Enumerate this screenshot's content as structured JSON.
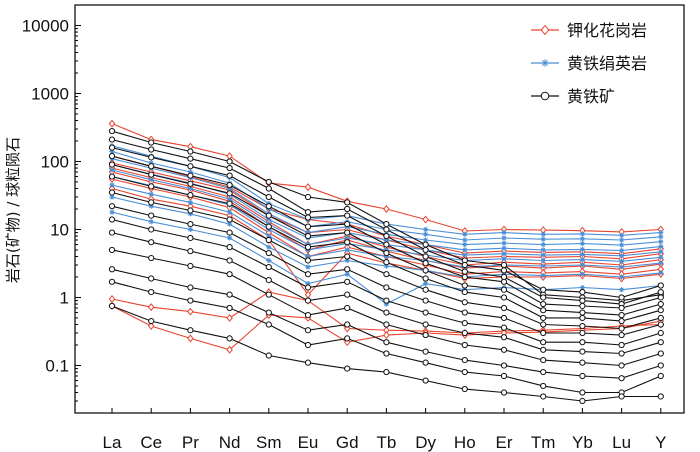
{
  "chart_data": {
    "type": "line",
    "yscale": "log",
    "title": "",
    "xlabel": "",
    "ylabel": "岩石(矿物) / 球粒陨石",
    "ylim": [
      0.02,
      20000
    ],
    "categories": [
      "La",
      "Ce",
      "Pr",
      "Nd",
      "Sm",
      "Eu",
      "Gd",
      "Tb",
      "Dy",
      "Ho",
      "Er",
      "Tm",
      "Yb",
      "Lu",
      "Y"
    ],
    "yticks": [
      {
        "value": 0.1,
        "label": "0.1"
      },
      {
        "value": 1,
        "label": "1"
      },
      {
        "value": 10,
        "label": "10"
      },
      {
        "value": 100,
        "label": "100"
      },
      {
        "value": 1000,
        "label": "1000"
      },
      {
        "value": 10000,
        "label": "10000"
      }
    ],
    "legend_position": "top-right",
    "colors": {
      "red": "#e8442e",
      "blue": "#4a8fd6",
      "black": "#111111"
    },
    "series": [
      {
        "name": "钾化花岗岩",
        "color": "#e8442e",
        "marker": "diamond",
        "values": [
          [
            360,
            210,
            165,
            120,
            48,
            42,
            26,
            20,
            14,
            9.5,
            10,
            9.8,
            9.6,
            9.2,
            10
          ],
          [
            120,
            85,
            60,
            42,
            20,
            14,
            12,
            8,
            6,
            4.5,
            4.8,
            4.6,
            4.7,
            4.4,
            5.2
          ],
          [
            95,
            70,
            52,
            38,
            16,
            9,
            10,
            7,
            5,
            3.8,
            4,
            3.9,
            4,
            3.7,
            4.4
          ],
          [
            80,
            58,
            43,
            30,
            13,
            6,
            8,
            5.5,
            4,
            3,
            3.3,
            3.1,
            3.3,
            3,
            3.6
          ],
          [
            70,
            50,
            38,
            26,
            11,
            5,
            7,
            4.8,
            3.5,
            2.7,
            2.9,
            2.7,
            2.9,
            2.6,
            3.1
          ],
          [
            55,
            40,
            30,
            21,
            9,
            4,
            5.5,
            4,
            3,
            2.2,
            2.4,
            2.3,
            2.4,
            2.2,
            2.6
          ],
          [
            40,
            28,
            22,
            16,
            7,
            1.1,
            4.5,
            3.2,
            2.5,
            1.9,
            2,
            2,
            2.1,
            1.9,
            2.2
          ],
          [
            0.95,
            0.72,
            0.62,
            0.5,
            1.2,
            0.9,
            0.35,
            0.33,
            0.32,
            0.3,
            0.32,
            0.33,
            0.35,
            0.38,
            0.4
          ],
          [
            0.75,
            0.38,
            0.25,
            0.17,
            0.55,
            0.5,
            0.22,
            0.28,
            0.3,
            0.28,
            0.3,
            0.31,
            0.33,
            0.35,
            0.45
          ]
        ]
      },
      {
        "name": "黄铁绢英岩",
        "color": "#4a8fd6",
        "marker": "asterisk",
        "values": [
          [
            170,
            120,
            85,
            58,
            24,
            14,
            16,
            12,
            10,
            8.5,
            9,
            8.5,
            8.6,
            8.2,
            9
          ],
          [
            140,
            95,
            70,
            48,
            20,
            11,
            13,
            10,
            8.5,
            7,
            7.5,
            7.2,
            7.3,
            7,
            7.8
          ],
          [
            110,
            80,
            58,
            40,
            17,
            9,
            11,
            8.5,
            7,
            6,
            6.3,
            6,
            6.2,
            5.9,
            6.6
          ],
          [
            90,
            65,
            48,
            33,
            14,
            7.5,
            9,
            7,
            6,
            5,
            5.3,
            5,
            5.1,
            4.9,
            5.6
          ],
          [
            75,
            54,
            40,
            28,
            12,
            6,
            7.5,
            6,
            5,
            4.2,
            4.4,
            4.2,
            4.3,
            4.1,
            4.7
          ],
          [
            60,
            44,
            32,
            23,
            10,
            5,
            6.2,
            5,
            4.2,
            3.5,
            3.7,
            3.5,
            3.6,
            3.4,
            3.9
          ],
          [
            45,
            33,
            25,
            18,
            8,
            4,
            5,
            4,
            3.5,
            2.8,
            3,
            2.9,
            3,
            2.8,
            3.2
          ],
          [
            30,
            22,
            17,
            12,
            5.5,
            2.8,
            3.5,
            2.9,
            2.5,
            2,
            2.2,
            2.1,
            2.2,
            2,
            2.3
          ],
          [
            18,
            13,
            10,
            7.5,
            3.5,
            1.6,
            2.2,
            0.8,
            1.6,
            1.3,
            1.4,
            1.3,
            1.4,
            1.3,
            1.5
          ]
        ]
      },
      {
        "name": "黄铁矿",
        "color": "#111111",
        "marker": "circle",
        "values": [
          [
            280,
            190,
            140,
            100,
            50,
            30,
            25,
            12,
            6,
            3.5,
            3,
            1.1,
            1,
            0.9,
            1.1
          ],
          [
            210,
            150,
            110,
            80,
            40,
            18,
            20,
            10,
            5,
            3,
            2.5,
            1.3,
            1.2,
            1,
            1.5
          ],
          [
            160,
            115,
            85,
            62,
            30,
            15,
            16,
            8,
            4,
            2.4,
            2,
            1,
            0.9,
            0.8,
            1.2
          ],
          [
            120,
            85,
            62,
            45,
            22,
            11,
            12,
            6,
            3.2,
            2,
            1.7,
            0.8,
            0.75,
            0.7,
            1
          ],
          [
            90,
            64,
            47,
            34,
            16,
            8,
            9,
            4.5,
            2.5,
            1.5,
            1.3,
            0.65,
            0.6,
            0.55,
            0.8
          ],
          [
            60,
            43,
            32,
            24,
            11,
            5.5,
            6.5,
            3.3,
            1.9,
            1.2,
            1,
            0.5,
            0.5,
            0.45,
            0.65
          ],
          [
            35,
            25,
            19,
            14,
            7,
            3.5,
            4,
            2.2,
            1.3,
            0.85,
            0.7,
            0.4,
            0.38,
            0.35,
            0.5
          ],
          [
            22,
            16,
            12,
            9,
            4.5,
            2.2,
            2.6,
            1.4,
            0.9,
            0.6,
            0.5,
            0.3,
            0.3,
            0.28,
            0.4
          ],
          [
            14,
            10,
            7.5,
            5.5,
            2.8,
            1.4,
            1.7,
            0.9,
            0.6,
            0.42,
            0.36,
            0.22,
            0.22,
            0.2,
            0.3
          ],
          [
            9,
            6.5,
            4.8,
            3.5,
            1.8,
            0.9,
            1.1,
            0.6,
            0.4,
            0.3,
            0.26,
            0.17,
            0.16,
            0.15,
            0.22
          ],
          [
            5,
            3.8,
            2.9,
            2.2,
            1.1,
            0.55,
            0.7,
            0.4,
            0.28,
            0.2,
            0.17,
            0.12,
            0.11,
            0.1,
            0.15
          ],
          [
            2.6,
            1.9,
            1.4,
            1.1,
            0.6,
            0.33,
            0.4,
            0.22,
            0.16,
            0.12,
            0.1,
            0.08,
            0.07,
            0.065,
            0.1
          ],
          [
            1.7,
            1.2,
            0.9,
            0.7,
            0.4,
            0.2,
            0.25,
            0.15,
            0.11,
            0.08,
            0.07,
            0.05,
            0.04,
            0.04,
            0.07
          ],
          [
            0.75,
            0.45,
            0.33,
            0.25,
            0.14,
            0.11,
            0.09,
            0.08,
            0.06,
            0.045,
            0.04,
            0.035,
            0.03,
            0.035,
            0.035
          ]
        ]
      }
    ]
  }
}
